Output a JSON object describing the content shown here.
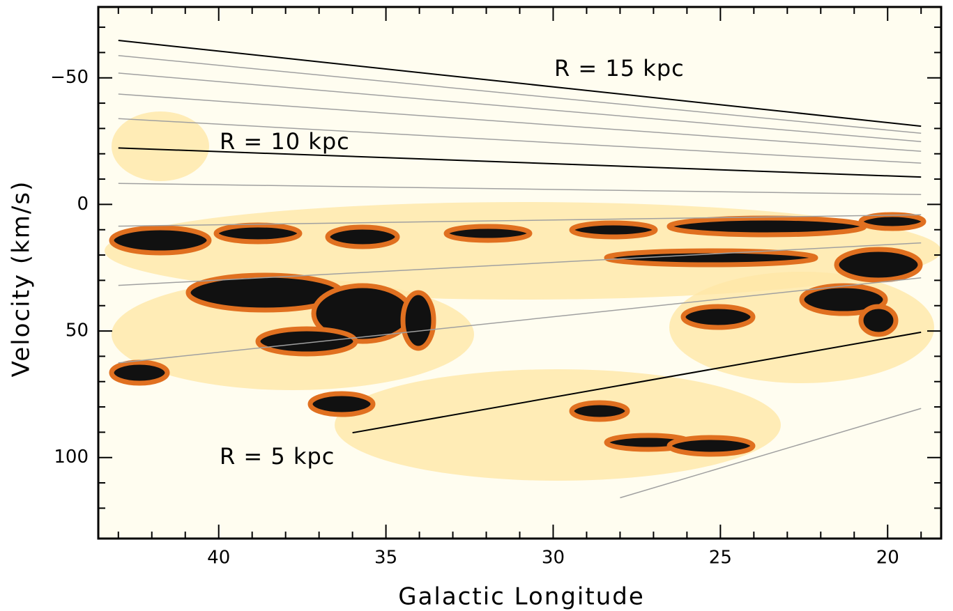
{
  "chart_data": {
    "type": "line",
    "xlabel": "Galactic Longitude",
    "ylabel": "Velocity (km/s)",
    "xlim": [
      43.6,
      18.4
    ],
    "ylim": [
      -78,
      132
    ],
    "xticks": [
      40,
      35,
      30,
      25,
      20
    ],
    "yticks": [
      {
        "value": -50,
        "label": "−50"
      },
      0,
      50,
      100
    ],
    "xminorticks": [
      43,
      42,
      41,
      39,
      38,
      37,
      36,
      34,
      33,
      32,
      31,
      29,
      28,
      27,
      26,
      24,
      23,
      22,
      21,
      19
    ],
    "yminorticks": [
      -70,
      -60,
      -40,
      -30,
      -20,
      -10,
      10,
      20,
      30,
      40,
      60,
      70,
      80,
      90,
      110,
      120
    ],
    "lines": [
      {
        "color": "#000000",
        "x": [
          43,
          19
        ],
        "y": [
          -64.8,
          -30.9
        ]
      },
      {
        "color": "#a0a0a0",
        "x": [
          43,
          19
        ],
        "y": [
          -58.8,
          -28.1
        ]
      },
      {
        "color": "#a0a0a0",
        "x": [
          43,
          19
        ],
        "y": [
          -51.9,
          -24.8
        ]
      },
      {
        "color": "#a0a0a0",
        "x": [
          43,
          19
        ],
        "y": [
          -43.6,
          -21.0
        ]
      },
      {
        "color": "#a0a0a0",
        "x": [
          43,
          19
        ],
        "y": [
          -33.9,
          -16.3
        ]
      },
      {
        "color": "#000000",
        "x": [
          43,
          19
        ],
        "y": [
          -22.3,
          -10.8
        ]
      },
      {
        "color": "#a0a0a0",
        "x": [
          43,
          19
        ],
        "y": [
          -8.3,
          -3.9
        ]
      },
      {
        "color": "#a0a0a0",
        "x": [
          43,
          19
        ],
        "y": [
          8.6,
          4.1
        ]
      },
      {
        "color": "#a0a0a0",
        "x": [
          43,
          19
        ],
        "y": [
          32.0,
          15.2
        ]
      },
      {
        "color": "#a0a0a0",
        "x": [
          43,
          19
        ],
        "y": [
          62.6,
          29.0
        ]
      },
      {
        "color": "#000000",
        "x": [
          36,
          19
        ],
        "y": [
          90.2,
          50.5
        ]
      },
      {
        "color": "#a0a0a0",
        "x": [
          28,
          19
        ],
        "y": [
          115.9,
          80.6
        ]
      }
    ],
    "annotations": [
      "R = 15 kpc",
      "R = 10 kpc",
      "R = 5 kpc"
    ]
  }
}
